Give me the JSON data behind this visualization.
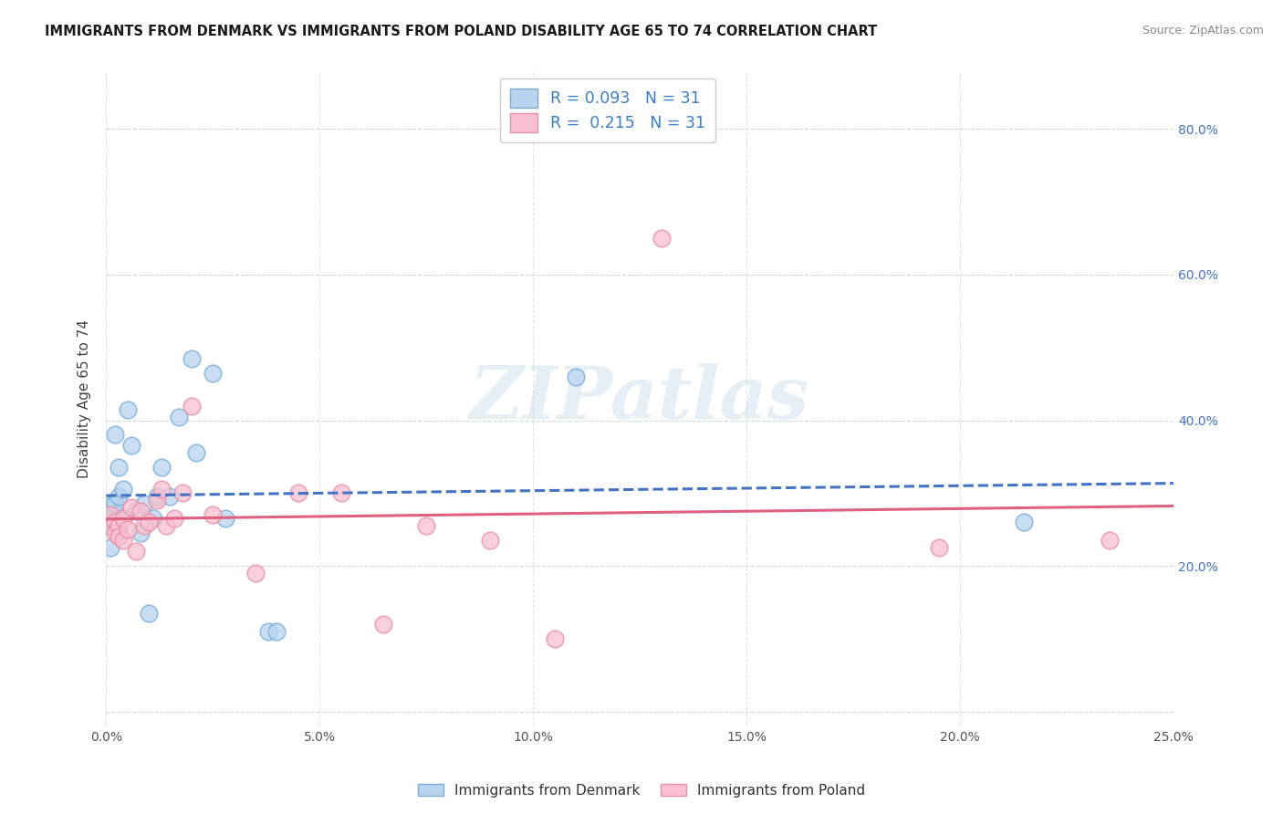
{
  "title": "IMMIGRANTS FROM DENMARK VS IMMIGRANTS FROM POLAND DISABILITY AGE 65 TO 74 CORRELATION CHART",
  "source": "Source: ZipAtlas.com",
  "ylabel": "Disability Age 65 to 74",
  "xlim": [
    0.0,
    0.25
  ],
  "ylim": [
    -0.02,
    0.88
  ],
  "denmark_x": [
    0.0005,
    0.001,
    0.001,
    0.0015,
    0.002,
    0.002,
    0.002,
    0.003,
    0.003,
    0.003,
    0.004,
    0.004,
    0.005,
    0.006,
    0.007,
    0.008,
    0.009,
    0.01,
    0.011,
    0.012,
    0.013,
    0.015,
    0.017,
    0.02,
    0.021,
    0.025,
    0.028,
    0.038,
    0.04,
    0.11,
    0.215
  ],
  "denmark_y": [
    0.255,
    0.265,
    0.225,
    0.285,
    0.38,
    0.27,
    0.285,
    0.335,
    0.245,
    0.295,
    0.265,
    0.305,
    0.415,
    0.365,
    0.275,
    0.245,
    0.285,
    0.135,
    0.265,
    0.295,
    0.335,
    0.295,
    0.405,
    0.485,
    0.355,
    0.465,
    0.265,
    0.11,
    0.11,
    0.46,
    0.26
  ],
  "poland_x": [
    0.001,
    0.001,
    0.002,
    0.002,
    0.003,
    0.003,
    0.004,
    0.004,
    0.005,
    0.006,
    0.007,
    0.008,
    0.009,
    0.01,
    0.012,
    0.013,
    0.014,
    0.016,
    0.018,
    0.02,
    0.025,
    0.035,
    0.045,
    0.055,
    0.065,
    0.075,
    0.09,
    0.105,
    0.13,
    0.195,
    0.235
  ],
  "poland_y": [
    0.27,
    0.255,
    0.26,
    0.245,
    0.255,
    0.24,
    0.265,
    0.235,
    0.25,
    0.28,
    0.22,
    0.275,
    0.255,
    0.26,
    0.29,
    0.305,
    0.255,
    0.265,
    0.3,
    0.42,
    0.27,
    0.19,
    0.3,
    0.3,
    0.12,
    0.255,
    0.235,
    0.1,
    0.65,
    0.225,
    0.235
  ],
  "denmark_color": "#b8d4f0",
  "denmark_edge": "#7aadd4",
  "poland_color": "#f8c0d0",
  "poland_edge": "#e890a8",
  "denmark_label": "Immigrants from Denmark",
  "poland_label": "Immigrants from Poland",
  "watermark_text": "ZIPatlas",
  "background_color": "#ffffff",
  "grid_color": "#cccccc",
  "x_ticks": [
    0.0,
    0.05,
    0.1,
    0.15,
    0.2,
    0.25
  ],
  "y_ticks": [
    0.0,
    0.2,
    0.4,
    0.6,
    0.8
  ],
  "right_y_ticks": [
    0.0,
    0.2,
    0.4,
    0.6,
    0.8
  ],
  "right_y_labels": [
    "",
    "20.0%",
    "40.0%",
    "60.0%",
    "80.0%"
  ],
  "x_tick_labels": [
    "0.0%",
    "5.0%",
    "10.0%",
    "15.0%",
    "20.0%",
    "25.0%"
  ],
  "title_fontsize": 10.5,
  "source_fontsize": 9,
  "tick_fontsize": 10,
  "legend_r1": "R = 0.093",
  "legend_n1": "N = 31",
  "legend_r2": "R =  0.215",
  "legend_n2": "N = 31"
}
